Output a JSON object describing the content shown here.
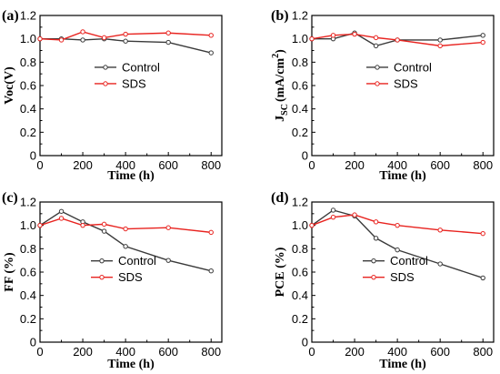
{
  "chart_data": [
    {
      "panel": "(a)",
      "type": "line",
      "xlabel": "Time (h)",
      "ylabel": "Voc(V)",
      "xlim": [
        0,
        850
      ],
      "ylim": [
        0,
        1.2
      ],
      "xticks": [
        0,
        200,
        400,
        600,
        800
      ],
      "yticks": [
        0,
        0.2,
        0.4,
        0.6,
        0.8,
        1.0,
        1.2
      ],
      "legend": "center-right",
      "series": [
        {
          "name": "Control",
          "color": "#3a3a3a",
          "x": [
            0,
            100,
            200,
            300,
            400,
            600,
            800
          ],
          "y": [
            1.0,
            1.0,
            0.99,
            1.0,
            0.98,
            0.97,
            0.88
          ]
        },
        {
          "name": "SDS",
          "color": "#e8231f",
          "x": [
            0,
            100,
            200,
            300,
            400,
            600,
            800
          ],
          "y": [
            1.0,
            0.99,
            1.06,
            1.01,
            1.04,
            1.05,
            1.03
          ]
        }
      ]
    },
    {
      "panel": "(b)",
      "type": "line",
      "xlabel": "Time (h)",
      "ylabel": "JSC (mA/cm2)",
      "ylabel_main": "J",
      "ylabel_sub": "SC",
      "ylabel_rest": "(mA/cm",
      "ylabel_sup": "2",
      "ylabel_end": ")",
      "xlim": [
        0,
        850
      ],
      "ylim": [
        0,
        1.2
      ],
      "xticks": [
        0,
        200,
        400,
        600,
        800
      ],
      "yticks": [
        0,
        0.2,
        0.4,
        0.6,
        0.8,
        1.0,
        1.2
      ],
      "legend": "center-right",
      "series": [
        {
          "name": "Control",
          "color": "#3a3a3a",
          "x": [
            0,
            100,
            200,
            300,
            400,
            600,
            800
          ],
          "y": [
            1.0,
            1.0,
            1.05,
            0.94,
            0.99,
            0.99,
            1.03
          ]
        },
        {
          "name": "SDS",
          "color": "#e8231f",
          "x": [
            0,
            100,
            200,
            300,
            400,
            600,
            800
          ],
          "y": [
            1.0,
            1.03,
            1.04,
            1.01,
            0.99,
            0.94,
            0.97
          ]
        }
      ]
    },
    {
      "panel": "(c)",
      "type": "line",
      "xlabel": "Time (h)",
      "ylabel": "FF (%)",
      "xlim": [
        0,
        850
      ],
      "ylim": [
        0,
        1.2
      ],
      "xticks": [
        0,
        200,
        400,
        600,
        800
      ],
      "yticks": [
        0,
        0.2,
        0.4,
        0.6,
        0.8,
        1.0,
        1.2
      ],
      "legend": "center",
      "series": [
        {
          "name": "Control",
          "color": "#3a3a3a",
          "x": [
            0,
            100,
            200,
            300,
            400,
            600,
            800
          ],
          "y": [
            1.0,
            1.12,
            1.03,
            0.95,
            0.82,
            0.7,
            0.61
          ]
        },
        {
          "name": "SDS",
          "color": "#e8231f",
          "x": [
            0,
            100,
            200,
            300,
            400,
            600,
            800
          ],
          "y": [
            1.0,
            1.06,
            1.0,
            1.01,
            0.97,
            0.98,
            0.94
          ]
        }
      ]
    },
    {
      "panel": "(d)",
      "type": "line",
      "xlabel": "Time (h)",
      "ylabel": "PCE (%)",
      "xlim": [
        0,
        850
      ],
      "ylim": [
        0,
        1.2
      ],
      "xticks": [
        0,
        200,
        400,
        600,
        800
      ],
      "yticks": [
        0,
        0.2,
        0.4,
        0.6,
        0.8,
        1.0,
        1.2
      ],
      "legend": "center",
      "series": [
        {
          "name": "Control",
          "color": "#3a3a3a",
          "x": [
            0,
            100,
            200,
            300,
            400,
            600,
            800
          ],
          "y": [
            1.0,
            1.13,
            1.08,
            0.89,
            0.79,
            0.67,
            0.55
          ]
        },
        {
          "name": "SDS",
          "color": "#e8231f",
          "x": [
            0,
            100,
            200,
            300,
            400,
            600,
            800
          ],
          "y": [
            1.0,
            1.07,
            1.09,
            1.03,
            1.0,
            0.96,
            0.93
          ]
        }
      ]
    }
  ]
}
